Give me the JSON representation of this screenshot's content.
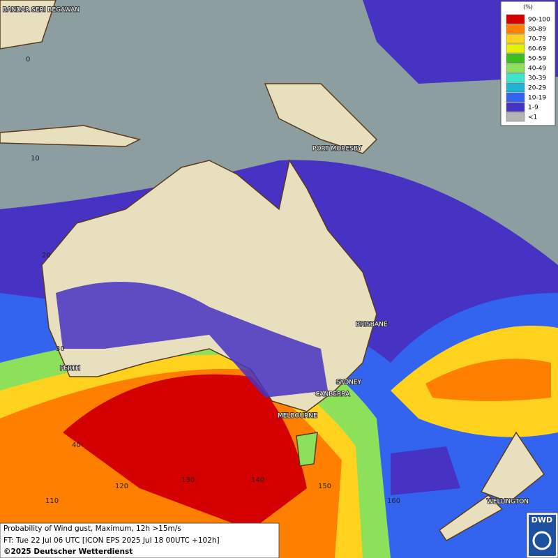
{
  "legend": {
    "title": "(%)",
    "items": [
      {
        "label": "90-100",
        "color": "#d40000"
      },
      {
        "label": "80-89",
        "color": "#ff8000"
      },
      {
        "label": "70-79",
        "color": "#ffd21e"
      },
      {
        "label": "60-69",
        "color": "#e6f000"
      },
      {
        "label": "50-59",
        "color": "#3cbf1e"
      },
      {
        "label": "40-49",
        "color": "#8ce05a"
      },
      {
        "label": "30-39",
        "color": "#3ce6c8"
      },
      {
        "label": "20-29",
        "color": "#1eb4d2"
      },
      {
        "label": "10-19",
        "color": "#3264f0"
      },
      {
        "label": "1-9",
        "color": "#4632c3"
      },
      {
        "label": "<1",
        "color": "#b4b4b4"
      }
    ]
  },
  "cities": [
    "BANDAR SERI BEGAWAN",
    "PORT MORESBY",
    "BRISBANE",
    "PERTH",
    "SYDNEY",
    "CANBERRA",
    "MELBOURNE",
    "WELLINGTON"
  ],
  "lat_labels": [
    "0",
    "10",
    "20",
    "30",
    "40"
  ],
  "lon_labels": [
    "110",
    "120",
    "130",
    "140",
    "150",
    "160"
  ],
  "caption": [
    "Probability of Wind gust, Maximum, 12h >15m/s",
    "FT: Tue 22 Jul 06 UTC [ICON EPS 2025 Jul 18 00UTC +102h]",
    "©2025 Deutscher Wetterdienst"
  ],
  "logo": "DWD"
}
